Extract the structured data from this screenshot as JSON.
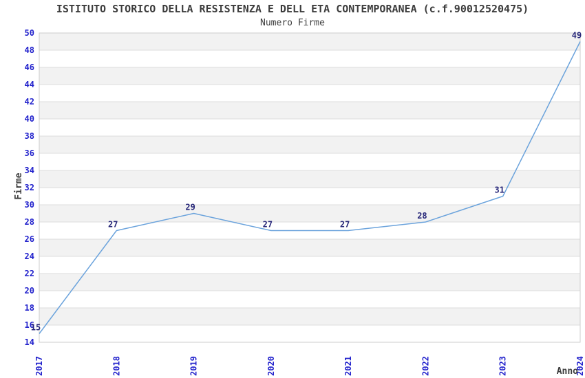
{
  "chart_data": {
    "type": "line",
    "title": "ISTITUTO STORICO DELLA RESISTENZA E DELL ETA CONTEMPORANEA (c.f.90012520475)",
    "subtitle": "Numero Firme",
    "xlabel": "Anno",
    "ylabel": "Firme",
    "categories": [
      "2017",
      "2018",
      "2019",
      "2020",
      "2021",
      "2022",
      "2023",
      "2024"
    ],
    "series": [
      {
        "name": "Numero Firme",
        "values": [
          15,
          27,
          29,
          27,
          27,
          28,
          31,
          49
        ]
      }
    ],
    "ylim": [
      14,
      50
    ],
    "ytick_step": 2,
    "grid": "horizontal-alternating-bands",
    "legend": "none",
    "x_tick_rotation_degrees": 90,
    "colors": {
      "line": "#6ba3dc",
      "tick_text": "#2222cc",
      "data_label": "#28287a",
      "title_text": "#3c3c3c",
      "axis_title_text": "#3c3c3c",
      "band": "#f2f2f2",
      "grid": "#dcdcdc",
      "border": "#cccccc",
      "background": "#ffffff"
    }
  }
}
